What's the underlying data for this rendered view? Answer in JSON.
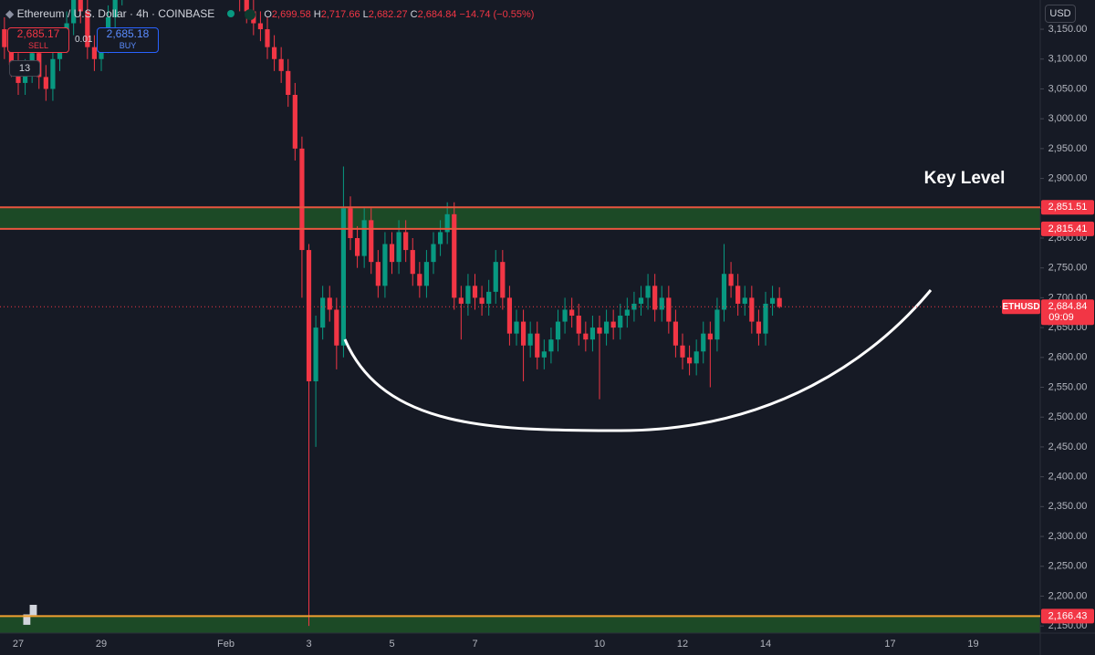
{
  "header": {
    "symbol": "Ethereum / U.S. Dollar · 4h · COINBASE",
    "ohlc_labels": [
      "O",
      "H",
      "L",
      "C"
    ],
    "ohlc_values": [
      "2,699.58",
      "2,717.66",
      "2,682.27",
      "2,684.84"
    ],
    "change": "−14.74 (−0.55%)"
  },
  "trade": {
    "sell_price": "2,685.17",
    "sell": "SELL",
    "quantity": "0.01",
    "buy_price": "2,685.18",
    "buy": "BUY",
    "indicators": "13"
  },
  "currency": "USD",
  "chart_data": {
    "type": "candlestick",
    "up_color": "#089981",
    "down_color": "#f23645",
    "grid": false,
    "categories": [
      null,
      null,
      null,
      "27",
      null,
      null,
      null,
      null,
      null,
      null,
      null,
      null,
      null,
      null,
      null,
      "29",
      null,
      null,
      null,
      null,
      null,
      null,
      null,
      null,
      null,
      null,
      null,
      null,
      null,
      null,
      null,
      null,
      null,
      "Feb",
      null,
      null,
      null,
      null,
      null,
      null,
      null,
      null,
      null,
      null,
      null,
      "3",
      null,
      null,
      null,
      null,
      null,
      null,
      null,
      null,
      null,
      null,
      null,
      "5",
      null,
      null,
      null,
      null,
      null,
      null,
      null,
      null,
      null,
      null,
      null,
      "7",
      null,
      null,
      null,
      null,
      null,
      null,
      null,
      null,
      null,
      null,
      null,
      null,
      null,
      null,
      null,
      null,
      null,
      "10",
      null,
      null,
      null,
      null,
      null,
      null,
      null,
      null,
      null,
      null,
      null,
      "12",
      null,
      null,
      null,
      null,
      null,
      null,
      null,
      null,
      null,
      null,
      null,
      "14",
      null,
      null,
      null,
      null,
      null,
      null,
      null,
      null,
      null,
      null,
      null,
      null,
      null,
      null,
      null,
      null,
      null,
      "17",
      null,
      null,
      null,
      null,
      null,
      null,
      null,
      null,
      null,
      null,
      null,
      "19",
      null,
      null,
      null,
      null,
      null,
      null,
      null,
      null
    ],
    "open": [
      3170,
      3150,
      3120,
      3090,
      3060,
      3080,
      3110,
      3070,
      3050,
      3100,
      3130,
      3160,
      3200,
      3180,
      3120,
      3100,
      3130,
      3170,
      3210,
      3240,
      3260,
      3230,
      3250,
      3280,
      3300,
      3270,
      3290,
      3310,
      3280,
      3260,
      3300,
      3320,
      3290,
      3270,
      3250,
      3230,
      3200,
      3180,
      3160,
      3150,
      3120,
      3100,
      3080,
      3040,
      2950,
      2780,
      2560,
      2650,
      2700,
      2680,
      2620,
      2850,
      2800,
      2770,
      2830,
      2760,
      2720,
      2790,
      2760,
      2810,
      2780,
      2740,
      2720,
      2760,
      2790,
      2810,
      2840,
      2700,
      2690,
      2720,
      2700,
      2690,
      2710,
      2760,
      2700,
      2640,
      2660,
      2620,
      2640,
      2600,
      2610,
      2630,
      2660,
      2680,
      2670,
      2640,
      2630,
      2650,
      2640,
      2660,
      2650,
      2670,
      2680,
      2690,
      2700,
      2720,
      2680,
      2700,
      2660,
      2620,
      2600,
      2590,
      2610,
      2640,
      2630,
      2680,
      2740,
      2720,
      2690,
      2700,
      2660,
      2640,
      2690,
      2699.58,
      null,
      null,
      null,
      null,
      null,
      null,
      null,
      null,
      null,
      null,
      null,
      null,
      null,
      null,
      null,
      null,
      null,
      null,
      null,
      null,
      null,
      null,
      null,
      null,
      null,
      null,
      null,
      null,
      null,
      null,
      null,
      null,
      null,
      null,
      null,
      null
    ],
    "high": [
      3190,
      3170,
      3140,
      3110,
      3100,
      3130,
      3130,
      3090,
      3120,
      3150,
      3180,
      3220,
      3220,
      3200,
      3140,
      3150,
      3190,
      3230,
      3260,
      3280,
      3280,
      3270,
      3300,
      3320,
      3320,
      3310,
      3330,
      3330,
      3300,
      3320,
      3340,
      3340,
      3310,
      3290,
      3270,
      3250,
      3220,
      3200,
      3180,
      3170,
      3140,
      3120,
      3100,
      3060,
      2970,
      2790,
      2670,
      2720,
      2720,
      2700,
      2920,
      2870,
      2820,
      2850,
      2850,
      2780,
      2810,
      2810,
      2830,
      2830,
      2800,
      2760,
      2780,
      2810,
      2830,
      2860,
      2860,
      2720,
      2740,
      2740,
      2720,
      2730,
      2780,
      2780,
      2720,
      2680,
      2680,
      2660,
      2660,
      2630,
      2650,
      2680,
      2700,
      2700,
      2690,
      2660,
      2670,
      2670,
      2680,
      2680,
      2690,
      2700,
      2710,
      2720,
      2740,
      2740,
      2720,
      2720,
      2680,
      2640,
      2620,
      2630,
      2660,
      2660,
      2700,
      2790,
      2760,
      2740,
      2720,
      2720,
      2680,
      2710,
      2720,
      2717.66,
      null,
      null,
      null,
      null,
      null,
      null,
      null,
      null,
      null,
      null,
      null,
      null,
      null,
      null,
      null,
      null,
      null,
      null,
      null,
      null,
      null,
      null,
      null,
      null,
      null,
      null,
      null,
      null,
      null,
      null,
      null,
      null,
      null,
      null,
      null,
      null
    ],
    "low": [
      3130,
      3100,
      3070,
      3040,
      3040,
      3060,
      3050,
      3030,
      3030,
      3080,
      3110,
      3140,
      3160,
      3100,
      3080,
      3080,
      3110,
      3150,
      3190,
      3220,
      3210,
      3210,
      3230,
      3260,
      3250,
      3250,
      3270,
      3260,
      3240,
      3240,
      3280,
      3270,
      3250,
      3230,
      3210,
      3180,
      3160,
      3140,
      3130,
      3100,
      3080,
      3060,
      3020,
      2930,
      2700,
      2150,
      2450,
      2630,
      2660,
      2580,
      2600,
      2780,
      2750,
      2750,
      2740,
      2700,
      2700,
      2740,
      2740,
      2760,
      2720,
      2700,
      2700,
      2740,
      2770,
      2790,
      2680,
      2630,
      2670,
      2680,
      2670,
      2670,
      2690,
      2680,
      2620,
      2620,
      2560,
      2600,
      2580,
      2580,
      2590,
      2610,
      2640,
      2650,
      2620,
      2610,
      2610,
      2530,
      2620,
      2630,
      2630,
      2650,
      2660,
      2670,
      2680,
      2660,
      2660,
      2640,
      2600,
      2580,
      2570,
      2570,
      2590,
      2550,
      2610,
      2660,
      2700,
      2670,
      2670,
      2640,
      2620,
      2620,
      2670,
      2682.27,
      null,
      null,
      null,
      null,
      null,
      null,
      null,
      null,
      null,
      null,
      null,
      null,
      null,
      null,
      null,
      null,
      null,
      null,
      null,
      null,
      null,
      null,
      null,
      null,
      null,
      null,
      null,
      null,
      null,
      null,
      null,
      null,
      null,
      null,
      null,
      null
    ],
    "close": [
      3150,
      3120,
      3090,
      3060,
      3080,
      3110,
      3070,
      3050,
      3100,
      3130,
      3160,
      3200,
      3180,
      3120,
      3100,
      3130,
      3170,
      3210,
      3240,
      3260,
      3230,
      3250,
      3280,
      3300,
      3270,
      3290,
      3310,
      3280,
      3260,
      3300,
      3320,
      3290,
      3270,
      3250,
      3230,
      3200,
      3180,
      3160,
      3150,
      3120,
      3100,
      3080,
      3040,
      2950,
      2780,
      2560,
      2650,
      2700,
      2680,
      2620,
      2850,
      2800,
      2770,
      2830,
      2760,
      2720,
      2790,
      2760,
      2810,
      2780,
      2740,
      2720,
      2760,
      2790,
      2810,
      2840,
      2700,
      2690,
      2720,
      2700,
      2690,
      2710,
      2760,
      2700,
      2640,
      2660,
      2620,
      2640,
      2600,
      2610,
      2630,
      2660,
      2680,
      2670,
      2640,
      2630,
      2650,
      2640,
      2660,
      2650,
      2670,
      2680,
      2690,
      2700,
      2720,
      2680,
      2700,
      2660,
      2620,
      2600,
      2590,
      2610,
      2640,
      2630,
      2680,
      2740,
      2720,
      2690,
      2700,
      2660,
      2640,
      2690,
      2699.58,
      2684.84,
      null,
      null,
      null,
      null,
      null,
      null,
      null,
      null,
      null,
      null,
      null,
      null,
      null,
      null,
      null,
      null,
      null,
      null,
      null,
      null,
      null,
      null,
      null,
      null,
      null,
      null,
      null,
      null,
      null,
      null,
      null,
      null,
      null,
      null,
      null,
      null
    ],
    "ylim": [
      2138,
      3199
    ],
    "yticks": [
      {
        "value": 2150,
        "label": "2,150.00"
      },
      {
        "value": 2200,
        "label": "2,200.00"
      },
      {
        "value": 2250,
        "label": "2,250.00"
      },
      {
        "value": 2300,
        "label": "2,300.00"
      },
      {
        "value": 2350,
        "label": "2,350.00"
      },
      {
        "value": 2400,
        "label": "2,400.00"
      },
      {
        "value": 2450,
        "label": "2,450.00"
      },
      {
        "value": 2500,
        "label": "2,500.00"
      },
      {
        "value": 2550,
        "label": "2,550.00"
      },
      {
        "value": 2600,
        "label": "2,600.00"
      },
      {
        "value": 2650,
        "label": "2,650.00"
      },
      {
        "value": 2700,
        "label": "2,700.00"
      },
      {
        "value": 2750,
        "label": "2,750.00"
      },
      {
        "value": 2800,
        "label": "2,800.00"
      },
      {
        "value": 2850,
        "label": "2,850.00"
      },
      {
        "value": 2900,
        "label": "2,900.00"
      },
      {
        "value": 2950,
        "label": "2,950.00"
      },
      {
        "value": 3000,
        "label": "3,000.00"
      },
      {
        "value": 3050,
        "label": "3,050.00"
      },
      {
        "value": 3100,
        "label": "3,100.00"
      },
      {
        "value": 3150,
        "label": "3,150.00"
      }
    ],
    "price_levels": [
      {
        "value": 2851.51,
        "label": "2,851.51",
        "color": "#e8553f"
      },
      {
        "value": 2815.41,
        "label": "2,815.41",
        "color": "#e8553f"
      },
      {
        "value": 2166.43,
        "label": "2,166.43",
        "color": "#f0a030"
      }
    ],
    "zone_color": "#1c4a26",
    "last_price": {
      "value": 2684.84,
      "label": "2,684.84",
      "symbol": "ETHUSD",
      "countdown": "09:09"
    },
    "annotation": "Key Level"
  }
}
